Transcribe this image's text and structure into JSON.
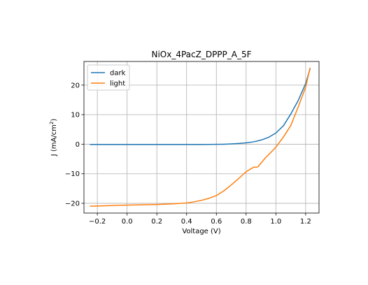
{
  "chart_data": {
    "type": "line",
    "title": "NiOx_4PacZ_DPPP_A_5F",
    "xlabel": "Voltage (V)",
    "ylabel_main": "J (mA/cm",
    "ylabel_sup": "2",
    "ylabel_close": ")",
    "xlim": [
      -0.29,
      1.29
    ],
    "ylim": [
      -23.3,
      28.0
    ],
    "xticks": [
      -0.2,
      0.0,
      0.2,
      0.4,
      0.6,
      0.8,
      1.0,
      1.2
    ],
    "xtick_labels": [
      "−0.2",
      "0.0",
      "0.2",
      "0.4",
      "0.6",
      "0.8",
      "1.0",
      "1.2"
    ],
    "yticks": [
      -20,
      -10,
      0,
      10,
      20
    ],
    "ytick_labels": [
      "−20",
      "−10",
      "0",
      "10",
      "20"
    ],
    "grid": true,
    "legend_position": "top-left",
    "colors": {
      "dark": "#1f77b4",
      "light": "#ff7f0e"
    },
    "series": [
      {
        "name": "dark",
        "color": "#1f77b4",
        "x": [
          -0.25,
          0.0,
          0.2,
          0.4,
          0.5,
          0.6,
          0.65,
          0.7,
          0.75,
          0.8,
          0.85,
          0.9,
          0.95,
          1.0,
          1.05,
          1.1,
          1.15,
          1.2,
          1.23
        ],
        "y": [
          -0.1,
          -0.1,
          -0.1,
          -0.1,
          -0.1,
          -0.05,
          0.0,
          0.1,
          0.25,
          0.45,
          0.8,
          1.4,
          2.3,
          3.8,
          6.2,
          10.2,
          14.8,
          20.5,
          25.5
        ]
      },
      {
        "name": "light",
        "color": "#ff7f0e",
        "x": [
          -0.25,
          -0.2,
          0.0,
          0.2,
          0.3,
          0.4,
          0.45,
          0.5,
          0.55,
          0.6,
          0.65,
          0.7,
          0.75,
          0.8,
          0.85,
          0.87,
          0.88,
          0.9,
          0.93,
          0.97,
          1.0,
          1.05,
          1.1,
          1.15,
          1.2,
          1.23
        ],
        "y": [
          -21.0,
          -20.9,
          -20.6,
          -20.4,
          -20.2,
          -19.9,
          -19.5,
          -19.0,
          -18.3,
          -17.4,
          -15.8,
          -13.8,
          -11.6,
          -9.3,
          -7.8,
          -7.8,
          -7.6,
          -6.4,
          -4.6,
          -2.6,
          -1.0,
          2.4,
          6.3,
          12.6,
          19.3,
          25.9
        ]
      }
    ]
  }
}
